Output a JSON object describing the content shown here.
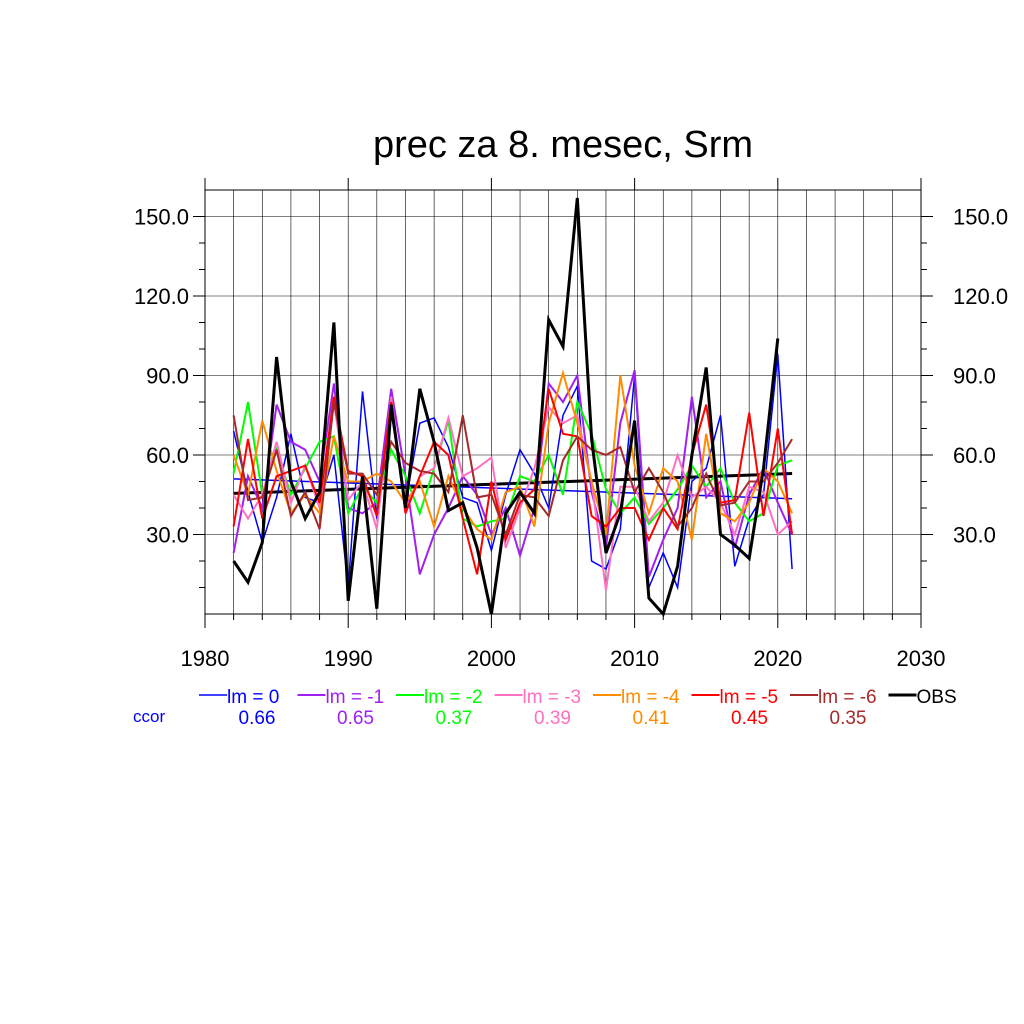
{
  "chart_data": {
    "type": "line",
    "title": "prec za 8. mesec, Srm",
    "xlabel": "",
    "ylabel": "",
    "xlim": [
      1980,
      2030
    ],
    "ylim": [
      0,
      160
    ],
    "x_ticks": [
      1980,
      1990,
      2000,
      2010,
      2020,
      2030
    ],
    "x_tick_labels": [
      "1980",
      "1990",
      "2000",
      "2010",
      "2020",
      "2030"
    ],
    "y_ticks": [
      30,
      60,
      90,
      120,
      150
    ],
    "y_tick_labels": [
      "30.0",
      "60.0",
      "90.0",
      "120.0",
      "150.0"
    ],
    "grid": true,
    "ccor_label": "ccor",
    "ccor_color": "#0000ff",
    "years": [
      1982,
      1983,
      1984,
      1985,
      1986,
      1987,
      1988,
      1989,
      1990,
      1991,
      1992,
      1993,
      1994,
      1995,
      1996,
      1997,
      1998,
      1999,
      2000,
      2001,
      2002,
      2003,
      2004,
      2005,
      2006,
      2007,
      2008,
      2009,
      2010,
      2011,
      2012,
      2013,
      2014,
      2015,
      2016,
      2017,
      2018,
      2019,
      2020,
      2021
    ],
    "series": [
      {
        "name": "lm = 0",
        "color": "#0000ff",
        "width": 1.5,
        "ccor": "0.66",
        "values": [
          69,
          46,
          27,
          44,
          68,
          44,
          42,
          60,
          10,
          84,
          36,
          76,
          42,
          72,
          74,
          63,
          44,
          42,
          24,
          45,
          62,
          53,
          40,
          75,
          86,
          20,
          17,
          32,
          90,
          10,
          23,
          10,
          50,
          55,
          75,
          18,
          36,
          45,
          98,
          17
        ],
        "trend": {
          "start": 51,
          "end": 43.5,
          "color": "#0000ff",
          "width": 1.5
        }
      },
      {
        "name": "lm = -1",
        "color": "#a020f0",
        "width": 2,
        "ccor": "0.65",
        "values": [
          23,
          52,
          40,
          79,
          65,
          62,
          50,
          87,
          40,
          38,
          42,
          85,
          52,
          15,
          30,
          40,
          52,
          45,
          30,
          40,
          22,
          40,
          87,
          80,
          90,
          46,
          25,
          72,
          92,
          14,
          28,
          40,
          82,
          44,
          50,
          25,
          45,
          55,
          42,
          30
        ]
      },
      {
        "name": "lm = -2",
        "color": "#00ff00",
        "width": 2,
        "ccor": "0.37",
        "values": [
          53,
          80,
          45,
          62,
          45,
          55,
          65,
          67,
          38,
          48,
          42,
          62,
          52,
          38,
          55,
          73,
          36,
          33,
          35,
          36,
          52,
          50,
          60,
          45,
          80,
          68,
          47,
          38,
          44,
          34,
          40,
          47,
          56,
          48,
          55,
          42,
          35,
          38,
          56,
          58
        ]
      },
      {
        "name": "lm = -3",
        "color": "#ff70c0",
        "width": 2,
        "ccor": "0.39",
        "values": [
          45,
          36,
          45,
          65,
          42,
          56,
          40,
          80,
          43,
          50,
          32,
          82,
          38,
          52,
          55,
          74,
          52,
          55,
          59,
          25,
          40,
          55,
          78,
          72,
          75,
          50,
          9,
          48,
          48,
          35,
          42,
          60,
          44,
          48,
          42,
          30,
          48,
          46,
          30,
          35
        ]
      },
      {
        "name": "lm = -4",
        "color": "#ff8c00",
        "width": 2,
        "ccor": "0.41",
        "values": [
          60,
          45,
          73,
          54,
          38,
          45,
          38,
          67,
          50,
          50,
          53,
          50,
          42,
          50,
          33,
          52,
          40,
          32,
          28,
          46,
          48,
          33,
          72,
          91,
          72,
          50,
          30,
          90,
          56,
          38,
          55,
          50,
          28,
          68,
          38,
          35,
          42,
          55,
          50,
          38
        ]
      },
      {
        "name": "lm = -5",
        "color": "#ff0000",
        "width": 2,
        "ccor": "0.45",
        "values": [
          33,
          66,
          36,
          52,
          54,
          56,
          42,
          82,
          54,
          52,
          37,
          80,
          38,
          52,
          65,
          60,
          36,
          15,
          50,
          28,
          42,
          47,
          85,
          68,
          67,
          37,
          33,
          40,
          40,
          28,
          40,
          32,
          60,
          79,
          42,
          43,
          76,
          37,
          70,
          30
        ]
      },
      {
        "name": "lm = -6",
        "color": "#a52a2a",
        "width": 2,
        "ccor": "0.35",
        "values": [
          75,
          43,
          44,
          62,
          37,
          46,
          32,
          80,
          53,
          53,
          45,
          65,
          57,
          54,
          53,
          46,
          75,
          44,
          45,
          30,
          45,
          44,
          37,
          58,
          67,
          62,
          60,
          63,
          46,
          55,
          46,
          33,
          40,
          53,
          41,
          42,
          50,
          50,
          57,
          66
        ]
      },
      {
        "name": "OBS",
        "color": "#000000",
        "width": 3,
        "ccor": "",
        "values": [
          20,
          12,
          27,
          97,
          50,
          36,
          46,
          110,
          5,
          52,
          2,
          79,
          40,
          85,
          65,
          39,
          42,
          25,
          0,
          38,
          46,
          38,
          111,
          101,
          157,
          66,
          23,
          38,
          73,
          6,
          0,
          18,
          60,
          93,
          30,
          26,
          21,
          55,
          104,
          null
        ],
        "trend": {
          "start": 45.5,
          "end": 53,
          "color": "#000000",
          "width": 3
        }
      }
    ]
  }
}
